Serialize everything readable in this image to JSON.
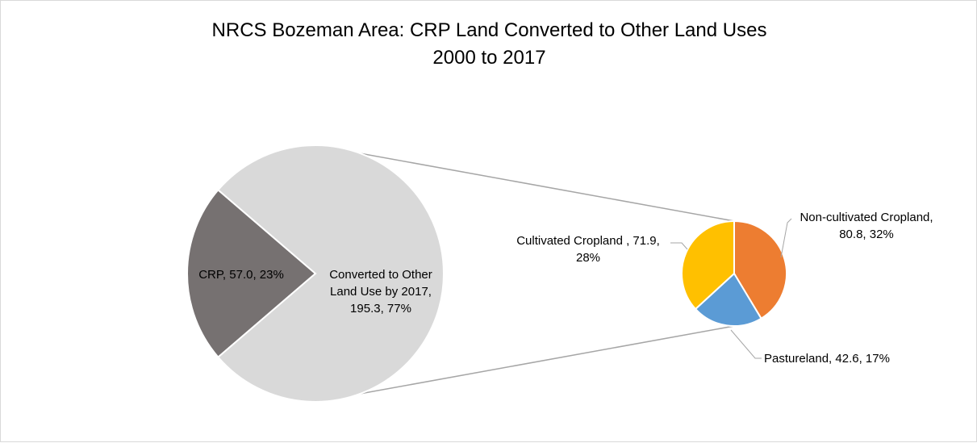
{
  "chart_data": {
    "type": "pie",
    "subtype": "pie-of-pie",
    "title": "NRCS Bozeman Area: CRP Land Converted to Other Land Uses",
    "subtitle": "2000 to 2017",
    "primary": {
      "slices": [
        {
          "name": "CRP",
          "value": 57.0,
          "percent": 23,
          "color": "#767171",
          "label_lines": [
            "CRP, 57.0, 23%"
          ]
        },
        {
          "name": "Converted to Other Land Use by 2017",
          "value": 195.3,
          "percent": 77,
          "color": "#d9d9d9",
          "label_lines": [
            "Converted to Other",
            "Land Use by 2017,",
            "195.3, 77%"
          ]
        }
      ]
    },
    "secondary": {
      "slices": [
        {
          "name": "Non-cultivated Cropland",
          "value": 80.8,
          "percent": 32,
          "color": "#ed7d31",
          "label_lines": [
            "Non-cultivated Cropland,",
            "80.8, 32%"
          ]
        },
        {
          "name": "Pastureland",
          "value": 42.6,
          "percent": 17,
          "color": "#5b9bd5",
          "label_lines": [
            "Pastureland, 42.6, 17%"
          ]
        },
        {
          "name": "Cultivated Cropland",
          "value": 71.9,
          "percent": 28,
          "color": "#ffc000",
          "label_lines": [
            "Cultivated Cropland , 71.9,",
            "28%"
          ]
        }
      ]
    },
    "connector_color": "#a6a6a6",
    "legend": "none"
  }
}
